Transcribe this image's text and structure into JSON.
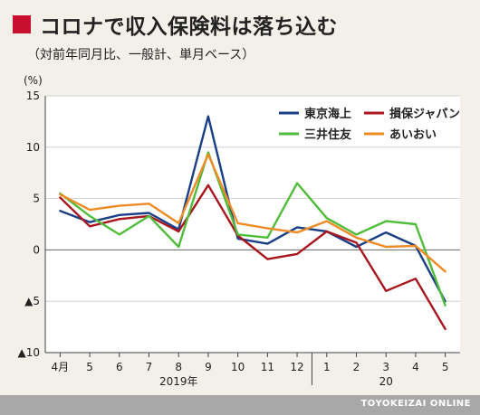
{
  "header": {
    "title": "コロナで収入保険料は落ち込む",
    "subtitle": "（対前年同月比、一般計、単月ベース）"
  },
  "footer": {
    "credit": "TOYOKEIZAI ONLINE"
  },
  "chart_data": {
    "type": "line",
    "unit_label": "(%)",
    "categories": [
      "4月",
      "5",
      "6",
      "7",
      "8",
      "9",
      "10",
      "11",
      "12",
      "1",
      "2",
      "3",
      "4",
      "5"
    ],
    "year_labels": [
      {
        "label": "2019年",
        "start": 0,
        "end": 8
      },
      {
        "label": "20",
        "start": 9,
        "end": 13
      }
    ],
    "y_ticks": [
      {
        "value": 15,
        "label": "15"
      },
      {
        "value": 10,
        "label": "10"
      },
      {
        "value": 5,
        "label": "5"
      },
      {
        "value": 0,
        "label": "0"
      },
      {
        "value": -5,
        "label": "▲5"
      },
      {
        "value": -10,
        "label": "▲10"
      }
    ],
    "ylim": [
      -10,
      15
    ],
    "grid": true,
    "legend_position": "top-right",
    "series": [
      {
        "name": "東京海上",
        "color": "#1a3f87",
        "values": [
          3.8,
          2.7,
          3.4,
          3.6,
          2.0,
          13.0,
          1.1,
          0.6,
          2.2,
          1.8,
          0.3,
          1.7,
          0.4,
          -5.0
        ]
      },
      {
        "name": "損保ジャパン",
        "color": "#a8161f",
        "values": [
          5.1,
          2.3,
          3.0,
          3.3,
          1.8,
          6.3,
          1.4,
          -0.9,
          -0.4,
          1.8,
          0.7,
          -4.0,
          -2.8,
          -7.7
        ]
      },
      {
        "name": "三井住友",
        "color": "#4fbd3a",
        "values": [
          5.5,
          3.3,
          1.5,
          3.3,
          0.3,
          9.5,
          1.5,
          1.2,
          6.5,
          3.1,
          1.5,
          2.8,
          2.5,
          -5.4
        ]
      },
      {
        "name": "あいおい",
        "color": "#ef8b26",
        "values": [
          5.4,
          3.9,
          4.3,
          4.5,
          2.6,
          9.3,
          2.6,
          2.1,
          1.7,
          2.8,
          1.2,
          0.3,
          0.4,
          -2.1
        ]
      }
    ]
  }
}
